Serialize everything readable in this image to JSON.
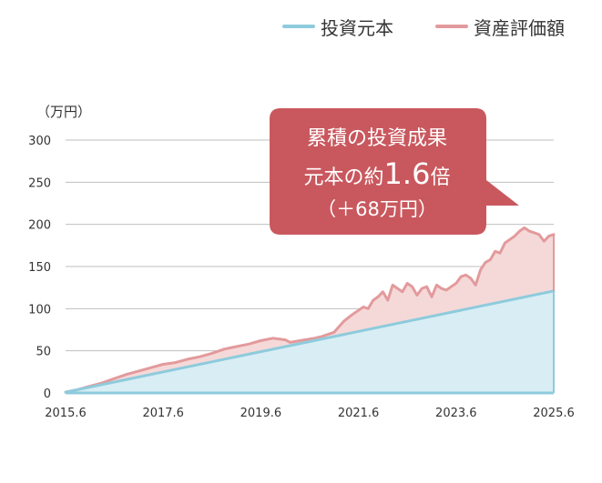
{
  "legend": {
    "principal_label": "投資元本",
    "valuation_label": "資産評価額"
  },
  "unit_label": "（万円）",
  "callout": {
    "line1": "累積の投資成果",
    "line2_prefix": "元本の約",
    "line2_value": "1.6",
    "line2_suffix": "倍",
    "line3": "（＋68万円）"
  },
  "colors": {
    "principal_line": "#8ecbdc",
    "principal_fill": "#d8eef4",
    "valuation_line": "#e39a9c",
    "valuation_fill": "#f5d9d9",
    "callout_bg": "#c9585e",
    "grid": "#bfbfbf"
  },
  "chart_data": {
    "type": "area",
    "xlabel": "",
    "ylabel": "（万円）",
    "x_ticks": [
      "2015.6",
      "2017.6",
      "2019.6",
      "2021.6",
      "2023.6",
      "2025.6"
    ],
    "y_ticks": [
      0,
      50,
      100,
      150,
      200,
      250,
      300
    ],
    "ylim": [
      0,
      300
    ],
    "xlim": [
      2015.5,
      2025.5
    ],
    "grid": true,
    "legend_position": "top-right",
    "series": [
      {
        "name": "投資元本",
        "x": [
          2015.5,
          2025.5
        ],
        "values": [
          1,
          121
        ]
      },
      {
        "name": "資産評価額",
        "x": [
          2015.5,
          2015.75,
          2016.0,
          2016.25,
          2016.5,
          2016.75,
          2017.0,
          2017.25,
          2017.5,
          2017.75,
          2018.0,
          2018.25,
          2018.5,
          2018.75,
          2019.0,
          2019.25,
          2019.5,
          2019.75,
          2020.0,
          2020.1,
          2020.2,
          2020.3,
          2020.4,
          2020.5,
          2020.6,
          2020.75,
          2021.0,
          2021.2,
          2021.35,
          2021.5,
          2021.6,
          2021.7,
          2021.8,
          2021.9,
          2022.0,
          2022.1,
          2022.2,
          2022.3,
          2022.4,
          2022.5,
          2022.6,
          2022.7,
          2022.8,
          2022.9,
          2023.0,
          2023.1,
          2023.2,
          2023.3,
          2023.4,
          2023.5,
          2023.6,
          2023.7,
          2023.8,
          2023.9,
          2024.0,
          2024.1,
          2024.2,
          2024.3,
          2024.4,
          2024.5,
          2024.6,
          2024.7,
          2024.8,
          2024.9,
          2025.0,
          2025.1,
          2025.2,
          2025.3,
          2025.4,
          2025.5
        ],
        "values": [
          1,
          4,
          8,
          12,
          17,
          22,
          26,
          30,
          34,
          36,
          40,
          43,
          47,
          52,
          55,
          58,
          62,
          65,
          63,
          60,
          61,
          62,
          63,
          64,
          65,
          67,
          72,
          85,
          92,
          98,
          102,
          100,
          110,
          114,
          120,
          110,
          128,
          124,
          120,
          130,
          126,
          116,
          124,
          126,
          114,
          128,
          124,
          122,
          126,
          130,
          138,
          140,
          136,
          128,
          146,
          155,
          158,
          168,
          166,
          178,
          182,
          186,
          192,
          196,
          192,
          190,
          188,
          180,
          186,
          188
        ]
      }
    ],
    "annotation": "累積の投資成果 元本の約1.6倍（＋68万円）"
  }
}
